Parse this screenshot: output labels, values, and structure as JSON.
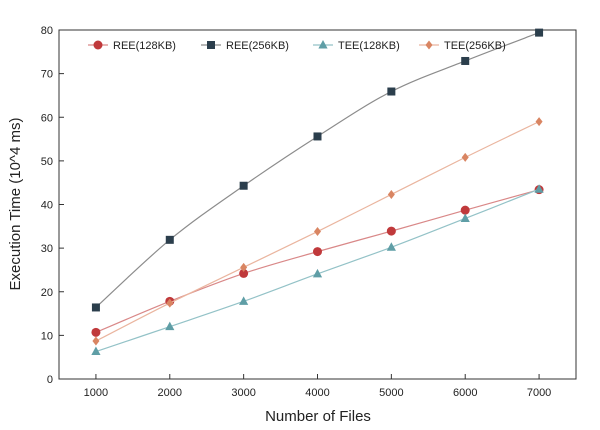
{
  "chart_data": {
    "type": "line",
    "title": "",
    "xlabel": "Number of Files",
    "ylabel": "Execution Time  (10^4 ms)",
    "x": [
      1000,
      2000,
      3000,
      4000,
      5000,
      6000,
      7000
    ],
    "xlim": [
      500,
      7500
    ],
    "ylim": [
      0,
      80
    ],
    "yticks": [
      0,
      10,
      20,
      30,
      40,
      50,
      60,
      70,
      80
    ],
    "grid": false,
    "legend_position": "top",
    "series": [
      {
        "name": "REE(128KB)",
        "marker": "circle",
        "color": "#c0393b",
        "line_color": "#d98888",
        "values": [
          10.7,
          17.8,
          24.2,
          29.2,
          33.9,
          38.7,
          43.4
        ]
      },
      {
        "name": "REE(256KB)",
        "marker": "square",
        "color": "#2b3e4c",
        "line_color": "#8c8c8c",
        "values": [
          16.4,
          31.9,
          44.3,
          55.6,
          65.9,
          72.9,
          79.4
        ]
      },
      {
        "name": "TEE(128KB)",
        "marker": "triangle",
        "color": "#5f9ea6",
        "line_color": "#93c2c7",
        "values": [
          6.3,
          12.0,
          17.8,
          24.1,
          30.2,
          36.8,
          43.5
        ]
      },
      {
        "name": "TEE(256KB)",
        "marker": "diamond",
        "color": "#d98562",
        "line_color": "#eab59f",
        "values": [
          8.7,
          17.4,
          25.6,
          33.8,
          42.3,
          50.8,
          59.0
        ]
      }
    ]
  }
}
